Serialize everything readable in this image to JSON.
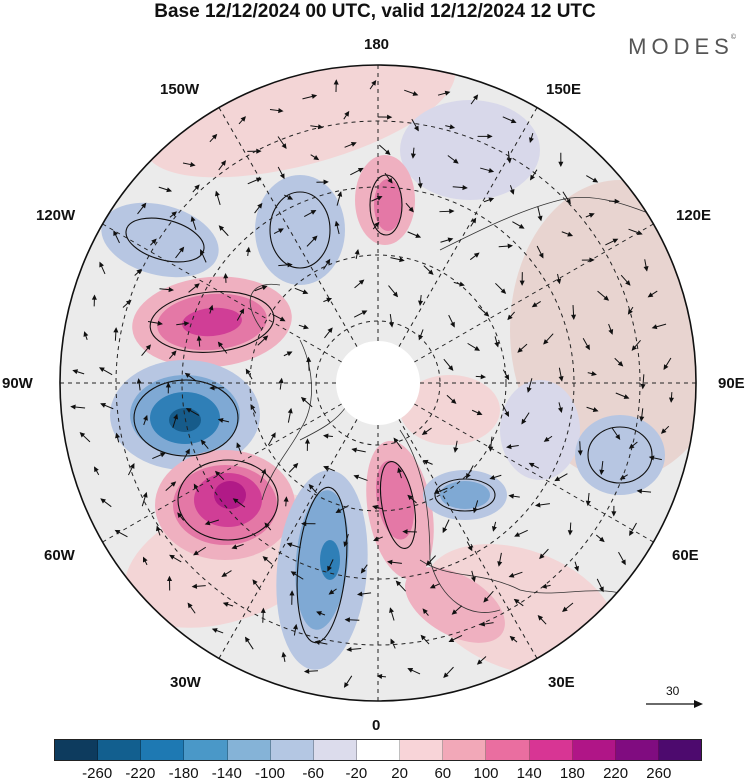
{
  "title": "Base 12/12/2024 00 UTC, valid 12/12/2024 12 UTC",
  "brand": "MODES",
  "brand_mark": "©",
  "longitude_labels": {
    "top": "180",
    "bottom": "0",
    "left": "90W",
    "right": "90E",
    "upper_left": "150W",
    "upper_right": "150E",
    "mid_upper_left": "120W",
    "mid_upper_right": "120E",
    "mid_lower_left": "60W",
    "mid_lower_right": "60E",
    "lower_left": "30W",
    "lower_right": "30E"
  },
  "reference_vector": {
    "label": "30"
  },
  "colorbar": {
    "tick_labels": [
      "-260",
      "-220",
      "-180",
      "-140",
      "-100",
      "-60",
      "-20",
      "20",
      "60",
      "100",
      "140",
      "180",
      "220",
      "260"
    ],
    "colors": [
      "#0d3b5e",
      "#125f8f",
      "#1e79b3",
      "#4a98c8",
      "#85b3d7",
      "#b4c7e3",
      "#dcdcec",
      "#ffffff",
      "#f8d4d8",
      "#f2a8b8",
      "#ea6ea0",
      "#d83594",
      "#b01587",
      "#800c80",
      "#4d0a6e"
    ]
  },
  "anomaly_colors": {
    "neutral": "#ebebeb",
    "neg_light": "#d8d8ea",
    "neg_mid": "#b7c6e2",
    "neg_strong": "#7fa9d4",
    "neg_core": "#2f7fb7",
    "neg_deep": "#165b8a",
    "pos_light": "#f3d5d6",
    "pos_mid": "#efb0c0",
    "pos_strong": "#e478a6",
    "pos_core": "#d03e96",
    "pos_deep": "#b11a87",
    "land_tint": "#e8d4d0"
  }
}
